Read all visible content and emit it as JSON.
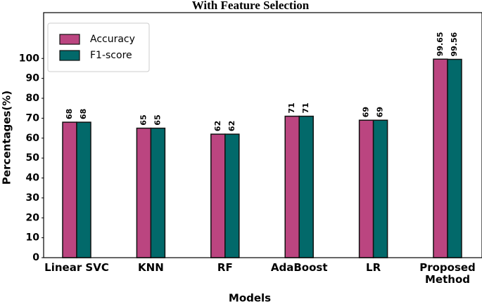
{
  "chart_data": {
    "type": "bar",
    "title": "With Feature Selection",
    "x_label": "Models",
    "y_label": "Percentages(%)",
    "categories": [
      "Linear SVC",
      "KNN",
      "RF",
      "AdaBoost",
      "LR",
      "Proposed\nMethod"
    ],
    "series": [
      {
        "name": "Accuracy",
        "color": "#bb4580",
        "values": [
          68,
          65,
          62,
          71,
          69,
          99.65
        ]
      },
      {
        "name": "F1-score",
        "color": "#02696a",
        "values": [
          68,
          65,
          62,
          71,
          69,
          99.56
        ]
      }
    ],
    "ylim": [
      0,
      123
    ],
    "yticks": [
      0,
      10,
      20,
      30,
      40,
      50,
      60,
      70,
      80,
      90,
      100
    ],
    "legend": "upper left"
  }
}
